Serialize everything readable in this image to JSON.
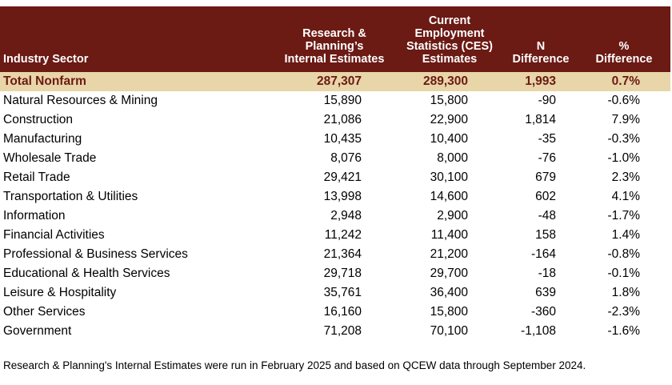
{
  "chart_data": {
    "type": "table",
    "columns": [
      "Industry Sector",
      "Research & Planning’s Internal Estimates",
      "Current Employment Statistics (CES) Estimates",
      "N Difference",
      "% Difference"
    ],
    "header_lines": {
      "col0": [
        "Industry Sector"
      ],
      "col1": [
        "Research &",
        "Planning’s",
        "Internal Estimates"
      ],
      "col2": [
        "Current",
        "Employment",
        "Statistics (CES)",
        "Estimates"
      ],
      "col3": [
        "N",
        "Difference"
      ],
      "col4": [
        "%",
        "Difference"
      ]
    },
    "rows": [
      [
        "Total Nonfarm",
        "287,307",
        "289,300",
        "1,993",
        "0.7%"
      ],
      [
        "Natural Resources & Mining",
        "15,890",
        "15,800",
        "-90",
        "-0.6%"
      ],
      [
        "Construction",
        "21,086",
        "22,900",
        "1,814",
        "7.9%"
      ],
      [
        "Manufacturing",
        "10,435",
        "10,400",
        "-35",
        "-0.3%"
      ],
      [
        "Wholesale Trade",
        "8,076",
        "8,000",
        "-76",
        "-1.0%"
      ],
      [
        "Retail Trade",
        "29,421",
        "30,100",
        "679",
        "2.3%"
      ],
      [
        "Transportation & Utilities",
        "13,998",
        "14,600",
        "602",
        "4.1%"
      ],
      [
        "Information",
        "2,948",
        "2,900",
        "-48",
        "-1.7%"
      ],
      [
        "Financial Activities",
        "11,242",
        "11,400",
        "158",
        "1.4%"
      ],
      [
        "Professional & Business Services",
        "21,364",
        "21,200",
        "-164",
        "-0.8%"
      ],
      [
        "Educational & Health Services",
        "29,718",
        "29,700",
        "-18",
        "-0.1%"
      ],
      [
        "Leisure & Hospitality",
        "35,761",
        "36,400",
        "639",
        "1.8%"
      ],
      [
        "Other Services",
        "16,160",
        "15,800",
        "-360",
        "-2.3%"
      ],
      [
        "Government",
        "71,208",
        "70,100",
        "-1,108",
        "-1.6%"
      ]
    ],
    "footnote": "Research & Planning's Internal Estimates were run in February 2025 and based on QCEW data through September 2024.",
    "colors": {
      "header_bg": "#6b1a14",
      "total_bg": "#e8d5a8",
      "total_text": "#6b1a14"
    }
  }
}
